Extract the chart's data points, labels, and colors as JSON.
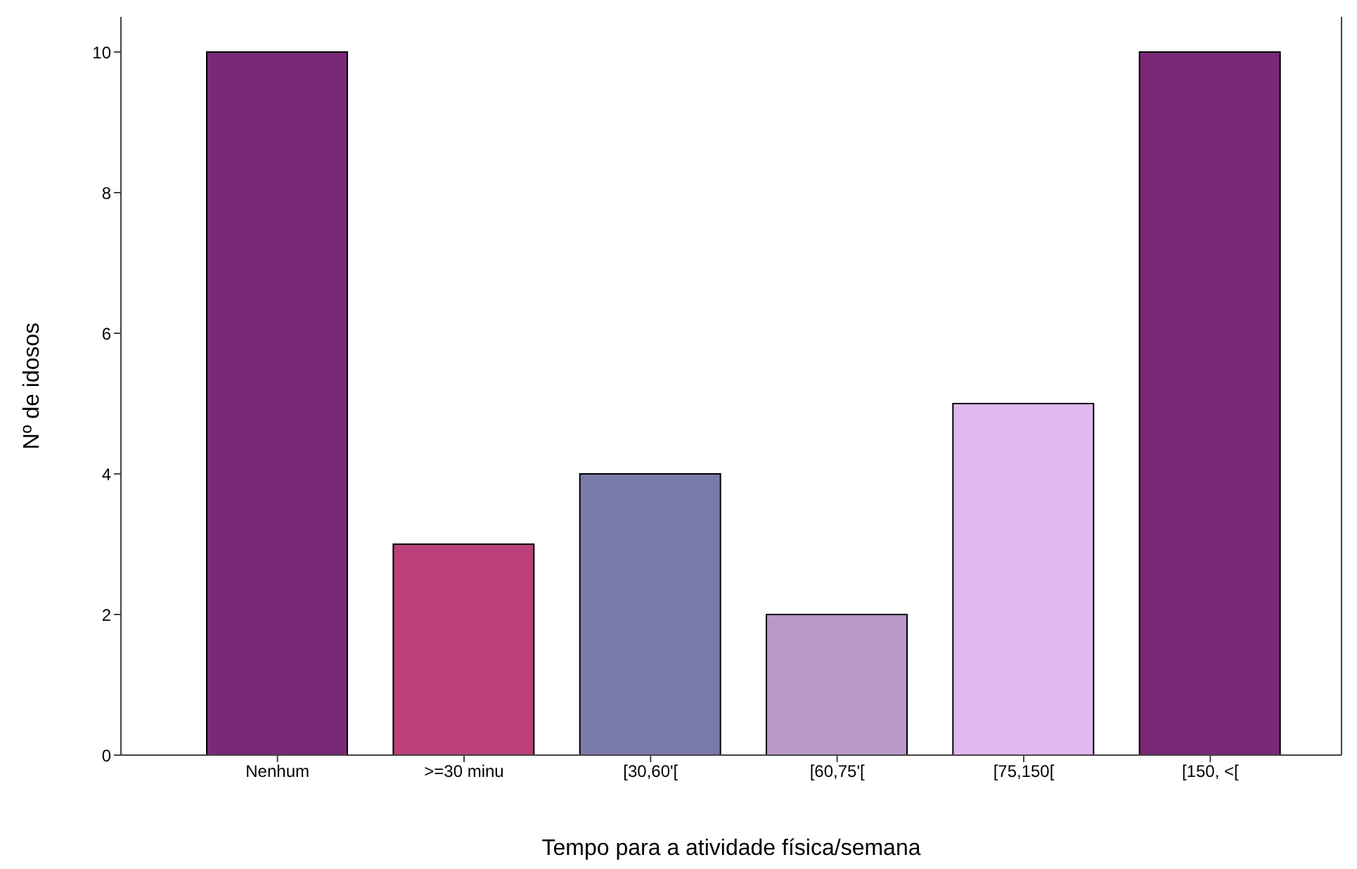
{
  "chart_data": {
    "type": "bar",
    "xlabel": "Tempo para a atividade física/semana",
    "ylabel": "Nº de idosos",
    "categories": [
      "Nenhum",
      ">=30 minu",
      "[30,60'[",
      "[60,75'[",
      "[75,150[",
      "[150, <["
    ],
    "values": [
      10,
      3,
      4,
      2,
      5,
      10
    ],
    "colors": [
      "#7b2878",
      "#bb407c",
      "#7a7aa8",
      "#b899c8",
      "#dfb8f0",
      "#7b2878"
    ],
    "ylim": [
      0,
      10.5
    ],
    "yticks": [
      0,
      2,
      4,
      6,
      8,
      10
    ],
    "grid": false,
    "legend": false
  }
}
